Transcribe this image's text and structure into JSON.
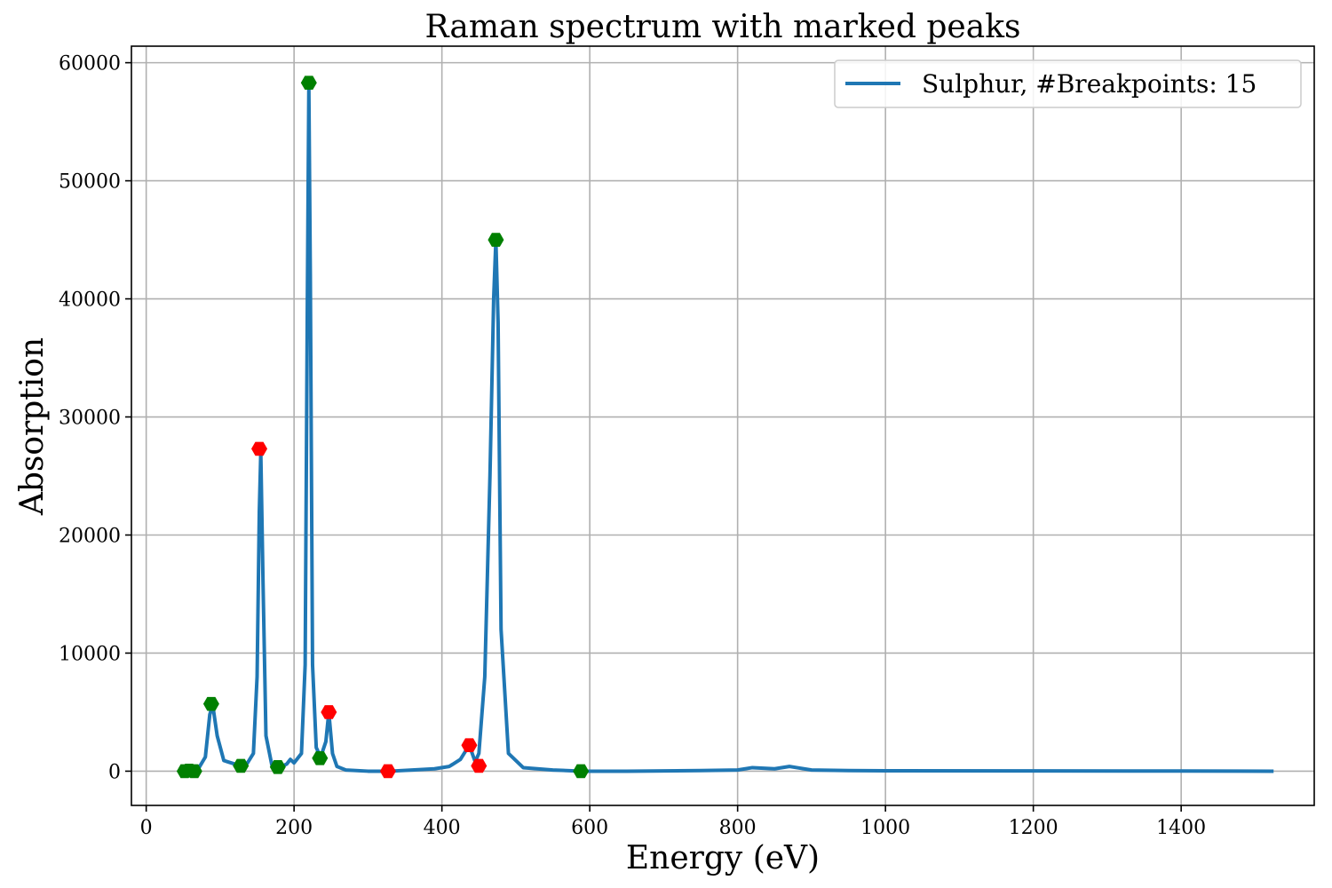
{
  "chart_data": {
    "type": "line",
    "title": "Raman spectrum with marked peaks",
    "xlabel": "Energy (eV)",
    "ylabel": "Absorption",
    "xlim": [
      -20,
      1580
    ],
    "ylim": [
      -2900,
      61400
    ],
    "xticks": [
      0,
      200,
      400,
      600,
      800,
      1000,
      1200,
      1400
    ],
    "yticks": [
      0,
      10000,
      20000,
      30000,
      40000,
      50000,
      60000
    ],
    "grid": true,
    "legend_position": "top-right",
    "series": [
      {
        "name": "Sulphur, #Breakpoints: 15",
        "color": "#1f77b4",
        "x": [
          50,
          70,
          80,
          86,
          90,
          96,
          105,
          120,
          135,
          145,
          150,
          153,
          155,
          158,
          162,
          170,
          180,
          190,
          195,
          200,
          210,
          215,
          218,
          220,
          222,
          225,
          230,
          236,
          243,
          247,
          252,
          258,
          270,
          300,
          330,
          360,
          390,
          410,
          425,
          437,
          445,
          450,
          458,
          465,
          470,
          473,
          476,
          480,
          490,
          510,
          550,
          590,
          650,
          750,
          800,
          820,
          850,
          870,
          880,
          900,
          950,
          1000,
          1200,
          1400,
          1525
        ],
        "y": [
          0,
          150,
          1200,
          4800,
          5600,
          3000,
          900,
          600,
          500,
          1500,
          8000,
          22000,
          27000,
          16000,
          3000,
          500,
          300,
          600,
          1000,
          700,
          1500,
          9000,
          40000,
          58000,
          42000,
          9000,
          2000,
          1200,
          2500,
          5000,
          1500,
          400,
          100,
          0,
          0,
          100,
          200,
          400,
          1000,
          2200,
          800,
          1500,
          8000,
          25000,
          40000,
          45000,
          38000,
          12000,
          1500,
          300,
          100,
          0,
          0,
          50,
          100,
          300,
          200,
          400,
          300,
          100,
          50,
          30,
          20,
          10,
          0
        ]
      }
    ],
    "peaks_green": {
      "x": [
        52,
        58,
        65,
        88,
        128,
        178,
        220,
        235,
        473,
        588
      ],
      "y": [
        0,
        50,
        0,
        5700,
        450,
        350,
        58300,
        1100,
        45000,
        0
      ],
      "color": "#008000"
    },
    "peaks_red": {
      "x": [
        153,
        247,
        327,
        437,
        450
      ],
      "y": [
        27300,
        5000,
        0,
        2200,
        450
      ],
      "color": "#ff0000"
    }
  }
}
